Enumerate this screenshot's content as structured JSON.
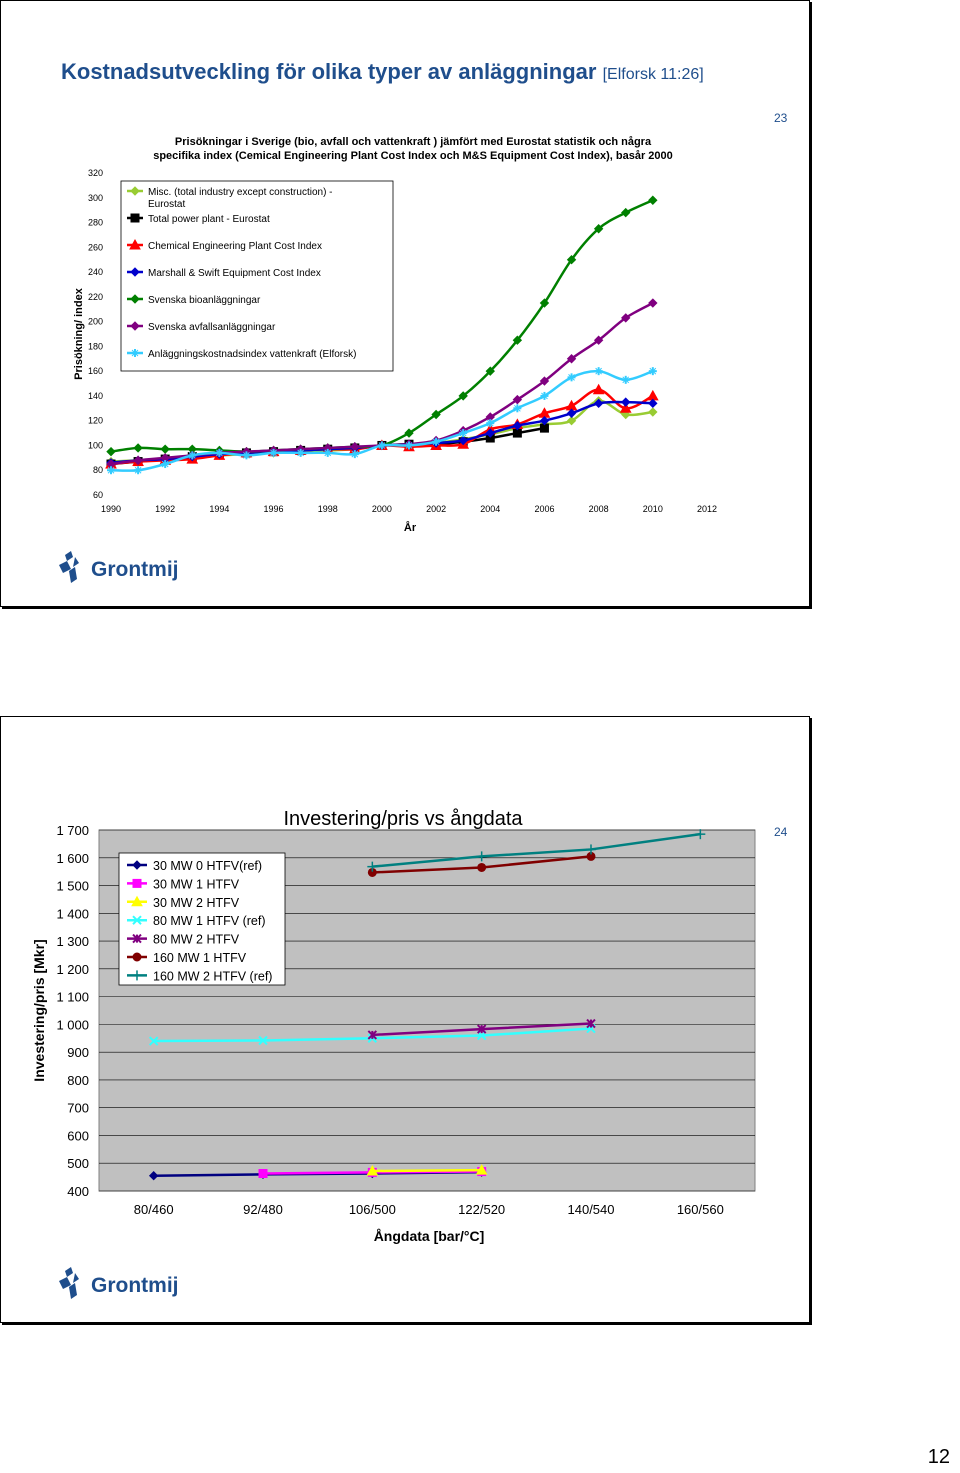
{
  "page": {
    "number": "12"
  },
  "slide1": {
    "title": "Kostnadsutveckling för olika typer av anläggningar",
    "title_ref": "[Elforsk 11:26]",
    "slide_number": "23",
    "logo_text": "Grontmij"
  },
  "slide2": {
    "slide_number": "24",
    "logo_text": "Grontmij"
  },
  "chart_data": [
    {
      "type": "line",
      "title_line1": "Prisökningar i Sverige (bio, avfall och vattenkraft ) jämfört med Eurostat statistik och några",
      "title_line2": "specifika index (Cemical Engineering Plant Cost Index och M&S Equipment Cost Index), basår 2000",
      "xlabel": "År",
      "ylabel": "Prisökning/ index",
      "xlim": [
        1990,
        2012
      ],
      "ylim": [
        60,
        320
      ],
      "x_ticks": [
        "1990",
        "1992",
        "1994",
        "1996",
        "1998",
        "2000",
        "2002",
        "2004",
        "2006",
        "2008",
        "2010",
        "2012"
      ],
      "y_ticks": [
        "60",
        "80",
        "100",
        "120",
        "140",
        "160",
        "180",
        "200",
        "220",
        "240",
        "260",
        "280",
        "300",
        "320"
      ],
      "grid": false,
      "legend_position": "top-left",
      "series": [
        {
          "name": "Misc. (total industry except construction) - Eurostat",
          "color": "#99cc33",
          "marker": "diamond",
          "x": [
            1990,
            1991,
            1992,
            1993,
            1994,
            1995,
            1996,
            1997,
            1998,
            1999,
            2000,
            2001,
            2002,
            2003,
            2004,
            2005,
            2006,
            2007,
            2008,
            2009,
            2010
          ],
          "y": [
            87,
            88,
            89,
            91,
            92,
            93,
            94,
            95,
            96,
            97,
            100,
            101,
            102,
            105,
            109,
            114,
            117,
            120,
            136,
            125,
            127
          ]
        },
        {
          "name": "Total power plant - Eurostat",
          "color": "#000000",
          "marker": "square",
          "x": [
            1990,
            1991,
            1992,
            1993,
            1994,
            1995,
            1996,
            1997,
            1998,
            1999,
            2000,
            2001,
            2002,
            2003,
            2004,
            2005,
            2006
          ],
          "y": [
            85,
            87,
            89,
            91,
            93,
            94,
            95,
            96,
            97,
            98,
            100,
            101,
            101,
            103,
            106,
            110,
            114
          ]
        },
        {
          "name": "Chemical Engineering Plant Cost Index",
          "color": "#ff0000",
          "marker": "triangle",
          "x": [
            1990,
            1991,
            1992,
            1993,
            1994,
            1995,
            1996,
            1997,
            1998,
            1999,
            2000,
            2001,
            2002,
            2003,
            2004,
            2005,
            2006,
            2007,
            2008,
            2009,
            2010
          ],
          "y": [
            85,
            87,
            88,
            89,
            92,
            94,
            95,
            96,
            97,
            97,
            100,
            99,
            100,
            101,
            113,
            117,
            126,
            132,
            145,
            130,
            140
          ]
        },
        {
          "name": "Marshall & Swift Equipment Cost Index",
          "color": "#0000cc",
          "marker": "diamond",
          "x": [
            1990,
            1991,
            1992,
            1993,
            1994,
            1995,
            1996,
            1997,
            1998,
            1999,
            2000,
            2001,
            2002,
            2003,
            2004,
            2005,
            2006,
            2007,
            2008,
            2009,
            2010
          ],
          "y": [
            86,
            88,
            89,
            91,
            93,
            94,
            95,
            96,
            97,
            98,
            100,
            101,
            102,
            104,
            110,
            116,
            120,
            126,
            134,
            135,
            134
          ]
        },
        {
          "name": "Svenska bioanläggningar",
          "color": "#008000",
          "marker": "diamond",
          "x": [
            1990,
            1991,
            1992,
            1993,
            1994,
            1995,
            1996,
            1997,
            1998,
            1999,
            2000,
            2001,
            2002,
            2003,
            2004,
            2005,
            2006,
            2007,
            2008,
            2009,
            2010
          ],
          "y": [
            95,
            98,
            97,
            97,
            96,
            95,
            96,
            97,
            98,
            99,
            100,
            110,
            125,
            140,
            160,
            185,
            215,
            250,
            275,
            288,
            298
          ]
        },
        {
          "name": "Svenska avfallsanläggningar",
          "color": "#800080",
          "marker": "diamond",
          "x": [
            1990,
            1991,
            1992,
            1993,
            1994,
            1995,
            1996,
            1997,
            1998,
            1999,
            2000,
            2001,
            2002,
            2003,
            2004,
            2005,
            2006,
            2007,
            2008,
            2009,
            2010
          ],
          "y": [
            85,
            88,
            90,
            92,
            94,
            95,
            96,
            97,
            98,
            99,
            100,
            101,
            104,
            112,
            123,
            137,
            152,
            170,
            185,
            203,
            215
          ]
        },
        {
          "name": "Anläggningskostnadsindex vattenkraft (Elforsk)",
          "color": "#33ccff",
          "marker": "cross",
          "x": [
            1990,
            1991,
            1992,
            1993,
            1994,
            1995,
            1996,
            1997,
            1998,
            1999,
            2000,
            2001,
            2002,
            2003,
            2004,
            2005,
            2006,
            2007,
            2008,
            2009,
            2010
          ],
          "y": [
            80,
            80,
            85,
            92,
            94,
            92,
            94,
            94,
            94,
            93,
            100,
            100,
            103,
            110,
            118,
            130,
            140,
            155,
            160,
            153,
            160
          ]
        }
      ]
    },
    {
      "type": "line",
      "title": "Investering/pris vs ångdata",
      "xlabel": "Ångdata [bar/°C]",
      "ylabel": "Investering/pris [Mkr]",
      "categories": [
        "80/460",
        "92/480",
        "106/500",
        "122/520",
        "140/540",
        "160/560"
      ],
      "ylim": [
        400,
        1700
      ],
      "y_ticks": [
        "400",
        "500",
        "600",
        "700",
        "800",
        "900",
        "1 000",
        "1 100",
        "1 200",
        "1 300",
        "1 400",
        "1 500",
        "1 600",
        "1 700"
      ],
      "grid": true,
      "plot_background": "#c0c0c0",
      "legend_position": "top-left",
      "series": [
        {
          "name": "30 MW 0 HTFV(ref)",
          "color": "#000080",
          "marker": "diamond",
          "values": [
            455,
            460,
            463,
            468,
            null,
            null
          ]
        },
        {
          "name": "30 MW 1 HTFV",
          "color": "#ff00ff",
          "marker": "square",
          "values": [
            null,
            463,
            467,
            470,
            null,
            null
          ]
        },
        {
          "name": "30 MW 2 HTFV",
          "color": "#ffff00",
          "marker": "triangle",
          "values": [
            null,
            null,
            472,
            475,
            null,
            null
          ]
        },
        {
          "name": "80 MW 1 HTFV (ref)",
          "color": "#33ffff",
          "marker": "x",
          "values": [
            940,
            942,
            950,
            960,
            985,
            null
          ]
        },
        {
          "name": "80 MW 2 HTFV",
          "color": "#800080",
          "marker": "star",
          "values": [
            null,
            null,
            962,
            983,
            1003,
            null
          ]
        },
        {
          "name": "160 MW 1 HTFV",
          "color": "#800000",
          "marker": "circle",
          "values": [
            null,
            null,
            1547,
            1565,
            1605,
            null
          ]
        },
        {
          "name": "160 MW 2 HTFV (ref)",
          "color": "#008080",
          "marker": "plus",
          "values": [
            null,
            null,
            1568,
            1605,
            1630,
            1685
          ]
        }
      ]
    }
  ]
}
